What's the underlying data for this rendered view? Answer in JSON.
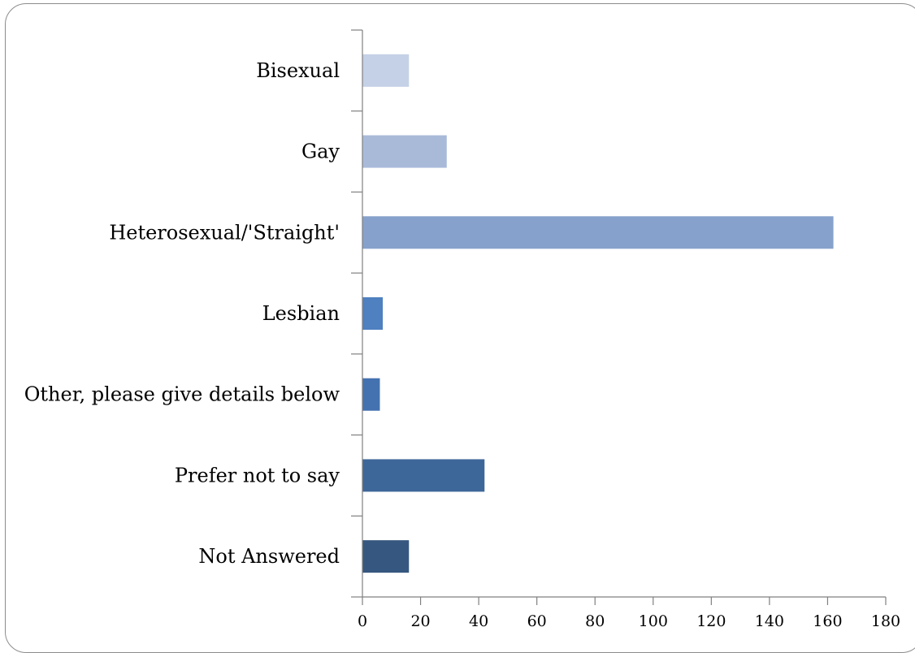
{
  "chart_data": {
    "type": "bar",
    "orientation": "horizontal",
    "categories": [
      "Bisexual",
      "Gay",
      "Heterosexual/'Straight'",
      "Lesbian",
      "Other, please give details below",
      "Prefer not to say",
      "Not Answered"
    ],
    "values": [
      16,
      29,
      162,
      7,
      6,
      42,
      16
    ],
    "bar_colors": [
      "#c5d1e6",
      "#a9bad9",
      "#86a1cc",
      "#4f80c0",
      "#4472b0",
      "#3e6799",
      "#36577f"
    ],
    "xlim": [
      0,
      180
    ],
    "xticks": [
      "0",
      "20",
      "40",
      "60",
      "80",
      "100",
      "120",
      "140",
      "160",
      "180"
    ],
    "grid": false,
    "legend": "none",
    "title": "",
    "xlabel": "",
    "ylabel": ""
  }
}
